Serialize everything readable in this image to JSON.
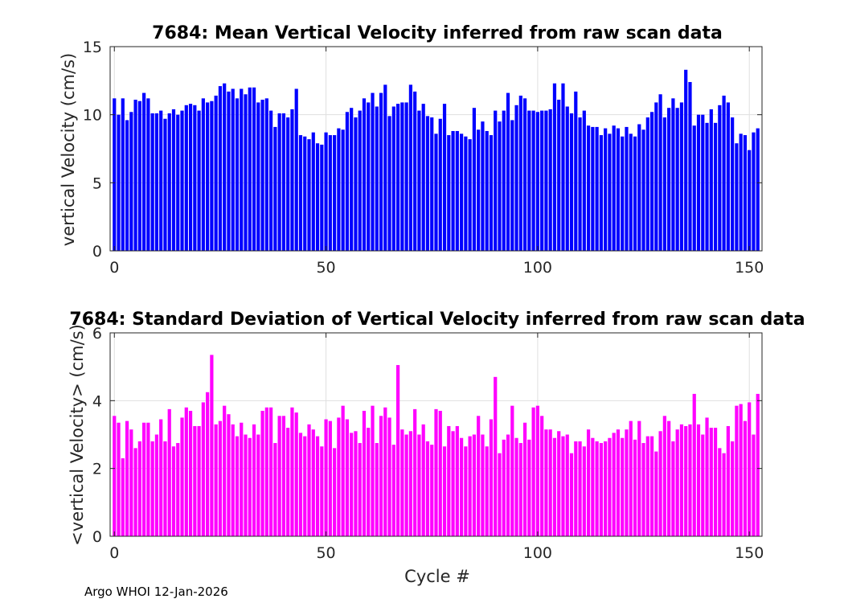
{
  "chart_data": [
    {
      "type": "bar",
      "title": "7684: Mean Vertical Velocity inferred from raw scan data",
      "xlabel": "",
      "ylabel": "vertical Velocity (cm/s)",
      "xlim": [
        -1,
        153
      ],
      "ylim": [
        0,
        15
      ],
      "xticks": [
        0,
        50,
        100,
        150
      ],
      "yticks": [
        0,
        5,
        10,
        15
      ],
      "grid": true,
      "color": "#0000ff",
      "x_start": 0,
      "values": [
        11.2,
        10.0,
        11.2,
        9.6,
        10.2,
        11.1,
        11.0,
        11.6,
        11.2,
        10.1,
        10.1,
        10.3,
        9.7,
        10.1,
        10.4,
        10.0,
        10.3,
        10.7,
        10.8,
        10.7,
        10.3,
        11.2,
        10.9,
        11.0,
        11.4,
        12.1,
        12.3,
        11.7,
        11.9,
        11.2,
        11.9,
        11.5,
        12.0,
        12.0,
        10.9,
        11.1,
        11.2,
        10.3,
        9.1,
        10.1,
        10.1,
        9.8,
        10.4,
        11.9,
        8.5,
        8.4,
        8.2,
        8.7,
        7.9,
        7.8,
        8.7,
        8.5,
        8.5,
        9.0,
        8.9,
        10.2,
        10.5,
        9.8,
        10.3,
        11.2,
        10.9,
        11.6,
        10.6,
        11.6,
        12.2,
        9.9,
        10.6,
        10.8,
        10.9,
        10.9,
        12.2,
        11.7,
        10.3,
        10.8,
        9.9,
        9.8,
        8.6,
        9.7,
        10.8,
        8.5,
        8.8,
        8.8,
        8.6,
        8.4,
        8.2,
        10.5,
        8.9,
        9.5,
        8.8,
        8.5,
        10.3,
        9.5,
        10.3,
        11.6,
        9.6,
        10.7,
        11.4,
        11.2,
        10.3,
        10.3,
        10.2,
        10.3,
        10.3,
        10.4,
        12.3,
        11.1,
        12.3,
        10.6,
        10.1,
        11.7,
        9.8,
        10.3,
        9.2,
        9.1,
        9.1,
        8.5,
        9.0,
        8.6,
        9.2,
        9.0,
        8.4,
        9.1,
        8.6,
        8.4,
        9.3,
        8.9,
        9.8,
        10.2,
        10.9,
        11.5,
        9.8,
        10.5,
        11.2,
        10.5,
        10.9,
        13.3,
        12.4,
        9.2,
        10.0,
        10.0,
        9.4,
        10.4,
        9.4,
        10.7,
        11.4,
        10.9,
        9.8,
        7.9,
        8.6,
        8.5,
        7.4,
        8.7,
        9.0
      ]
    },
    {
      "type": "bar",
      "title": "7684: Standard Deviation of Vertical Velocity inferred from raw scan data",
      "xlabel": "Cycle #",
      "ylabel": "<vertical Velocity> (cm/s)",
      "xlim": [
        -1,
        153
      ],
      "ylim": [
        0,
        6
      ],
      "xticks": [
        0,
        50,
        100,
        150
      ],
      "yticks": [
        0,
        2,
        4,
        6
      ],
      "grid": true,
      "color": "#ff00ff",
      "x_start": 0,
      "values": [
        3.55,
        3.35,
        2.3,
        3.4,
        3.15,
        2.6,
        2.8,
        3.35,
        3.35,
        2.8,
        3.0,
        3.45,
        2.8,
        3.75,
        2.65,
        2.75,
        3.5,
        3.8,
        3.7,
        3.25,
        3.25,
        3.95,
        4.25,
        5.35,
        3.3,
        3.4,
        3.85,
        3.6,
        3.3,
        2.95,
        3.35,
        3.0,
        2.9,
        3.3,
        3.0,
        3.7,
        3.8,
        3.8,
        2.75,
        3.55,
        3.55,
        3.2,
        3.8,
        3.65,
        3.05,
        2.95,
        3.3,
        3.15,
        2.95,
        2.65,
        3.45,
        3.4,
        2.6,
        3.5,
        3.85,
        3.45,
        3.05,
        3.1,
        2.75,
        3.7,
        3.2,
        3.85,
        2.75,
        3.55,
        3.8,
        3.5,
        2.7,
        5.05,
        3.15,
        3.0,
        3.1,
        3.75,
        3.0,
        3.3,
        2.8,
        2.7,
        3.75,
        3.7,
        2.65,
        3.25,
        3.1,
        3.25,
        2.9,
        2.65,
        2.95,
        3.0,
        3.55,
        3.0,
        2.65,
        3.45,
        4.7,
        2.45,
        2.85,
        3.0,
        3.85,
        2.9,
        2.75,
        3.35,
        2.85,
        3.8,
        3.85,
        3.55,
        3.15,
        3.15,
        2.9,
        3.1,
        2.95,
        3.0,
        2.45,
        2.8,
        2.8,
        2.65,
        3.15,
        2.9,
        2.8,
        2.75,
        2.8,
        2.9,
        3.05,
        3.15,
        2.9,
        3.15,
        3.4,
        2.85,
        3.4,
        2.75,
        2.95,
        2.95,
        2.5,
        3.1,
        3.55,
        3.4,
        2.8,
        3.15,
        3.3,
        3.25,
        3.3,
        4.2,
        3.3,
        3.0,
        3.5,
        3.2,
        3.2,
        2.6,
        2.45,
        3.25,
        2.8,
        3.85,
        3.9,
        3.4,
        3.95,
        3.0,
        4.2
      ]
    }
  ],
  "footer": {
    "text": "Argo WHOI 12-Jan-2026"
  }
}
